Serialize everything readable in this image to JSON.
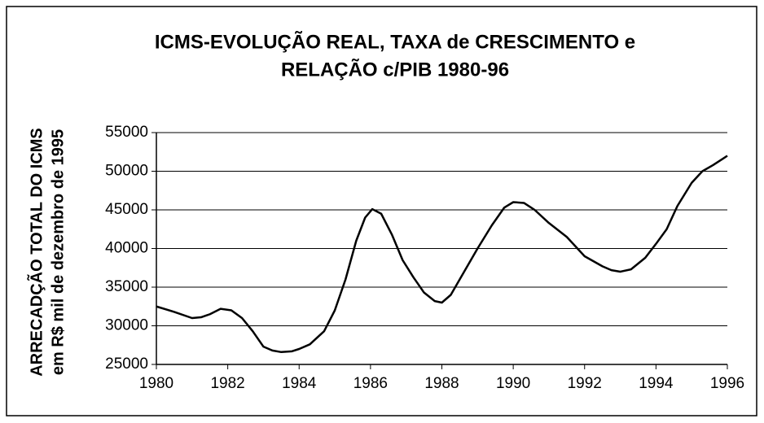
{
  "chart_data": {
    "type": "line",
    "title_lines": [
      "ICMS-EVOLUÇÃO REAL, TAXA de CRESCIMENTO e",
      "RELAÇÃO c/PIB 1980-96"
    ],
    "y_label_lines": [
      "ARRECADÇÃO TOTAL DO ICMS",
      "em R$ mil de dezembro de 1995"
    ],
    "series": [
      {
        "color": "#000000",
        "x": [
          1980,
          1980.5,
          1981,
          1981.25,
          1981.5,
          1981.8,
          1982.1,
          1982.4,
          1982.7,
          1983,
          1983.25,
          1983.5,
          1983.8,
          1984,
          1984.3,
          1984.7,
          1985,
          1985.3,
          1985.6,
          1985.85,
          1986.05,
          1986.3,
          1986.6,
          1986.9,
          1987.2,
          1987.5,
          1987.8,
          1988,
          1988.25,
          1988.6,
          1989,
          1989.4,
          1989.75,
          1990,
          1990.3,
          1990.6,
          1991,
          1991.5,
          1992,
          1992.5,
          1992.75,
          1993,
          1993.3,
          1993.7,
          1994,
          1994.3,
          1994.6,
          1995,
          1995.3,
          1995.6,
          1996
        ],
        "values": [
          32500,
          31800,
          31000,
          31100,
          31500,
          32200,
          32000,
          31000,
          29300,
          27300,
          26800,
          26600,
          26700,
          27000,
          27600,
          29300,
          32000,
          36000,
          41000,
          44000,
          45100,
          44500,
          41800,
          38500,
          36300,
          34300,
          33200,
          33000,
          34000,
          36800,
          40000,
          43000,
          45300,
          46000,
          45900,
          45000,
          43300,
          41500,
          39000,
          37700,
          37200,
          37000,
          37300,
          38800,
          40600,
          42500,
          45500,
          48500,
          50000,
          50800,
          52000
        ]
      }
    ],
    "xlim": [
      1980,
      1996
    ],
    "xticks": [
      1980,
      1982,
      1984,
      1986,
      1988,
      1990,
      1992,
      1994,
      1996
    ],
    "ylim": [
      25000,
      55000
    ],
    "yticks": [
      25000,
      30000,
      35000,
      40000,
      45000,
      50000,
      55000
    ],
    "grid": true
  }
}
